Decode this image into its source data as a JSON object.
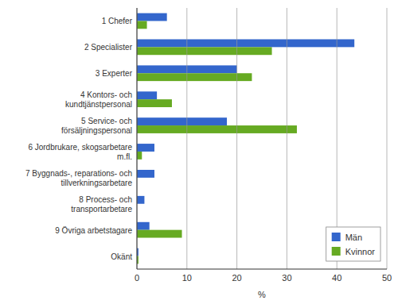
{
  "chart_data": {
    "type": "bar",
    "orientation": "horizontal",
    "categories": [
      "Okänt",
      "9 Övriga arbetstagare",
      "8 Process- och\ntransportarbetare",
      "7 Byggnads-, reparations- och\ntillverkningsarbetare",
      "6 Jordbrukare, skogsarbetare\nm.fl.",
      "5 Service- och\nförsäljningspersonal",
      "4 Kontors- och\nkundtjänstpersonal",
      "3 Experter",
      "2 Specialister",
      "1 Chefer"
    ],
    "series": [
      {
        "name": "Män",
        "color": "#3366CC",
        "values": [
          0.3,
          2.5,
          1.5,
          3.5,
          3.5,
          18.0,
          4.0,
          20.0,
          43.5,
          6.0
        ]
      },
      {
        "name": "Kvinnor",
        "color": "#66AA22",
        "values": [
          0.3,
          9.0,
          0.0,
          0.0,
          1.0,
          32.0,
          7.0,
          23.0,
          27.0,
          2.0
        ]
      }
    ],
    "xlabel": "%",
    "xlim": [
      0,
      50
    ],
    "xticks": [
      0,
      10,
      20,
      30,
      40,
      50
    ],
    "grid": true,
    "legend": "lower right"
  }
}
